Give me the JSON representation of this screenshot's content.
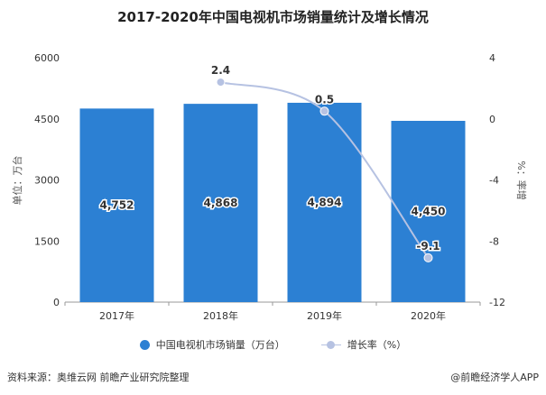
{
  "title": "2017-2020年中国电视机市场销量统计及增长情况",
  "footer": {
    "source": "资料来源：奥维云网 前瞻产业研究院整理",
    "brand": "@前瞻经济学人APP"
  },
  "colors": {
    "bar": "#2c80d3",
    "line": "#b6c2e2",
    "axis": "#999999"
  },
  "chart_data": {
    "type": "bar",
    "categories": [
      "2017年",
      "2018年",
      "2019年",
      "2020年"
    ],
    "series": [
      {
        "name": "中国电视机市场销量（万台）",
        "type": "bar",
        "axis": "left",
        "values": [
          4752,
          4868,
          4894,
          4450
        ],
        "labels": [
          "4,752",
          "4,868",
          "4,894",
          "4,450"
        ]
      },
      {
        "name": "增长率（%）",
        "type": "line",
        "axis": "right",
        "values": [
          null,
          2.4,
          0.5,
          -9.1
        ],
        "labels": [
          "",
          "2.4",
          "0.5",
          "-9.1"
        ]
      }
    ],
    "ylabel": "单位：万台",
    "ylim": [
      0,
      6000
    ],
    "yticks": [
      "0",
      "1500",
      "3000",
      "4500",
      "6000"
    ],
    "y2label": "%：率增",
    "y2lim": [
      -12,
      4
    ],
    "y2ticks": [
      "-12",
      "-8",
      "-4",
      "0",
      "4"
    ],
    "grid": false,
    "legend_position": "bottom"
  }
}
